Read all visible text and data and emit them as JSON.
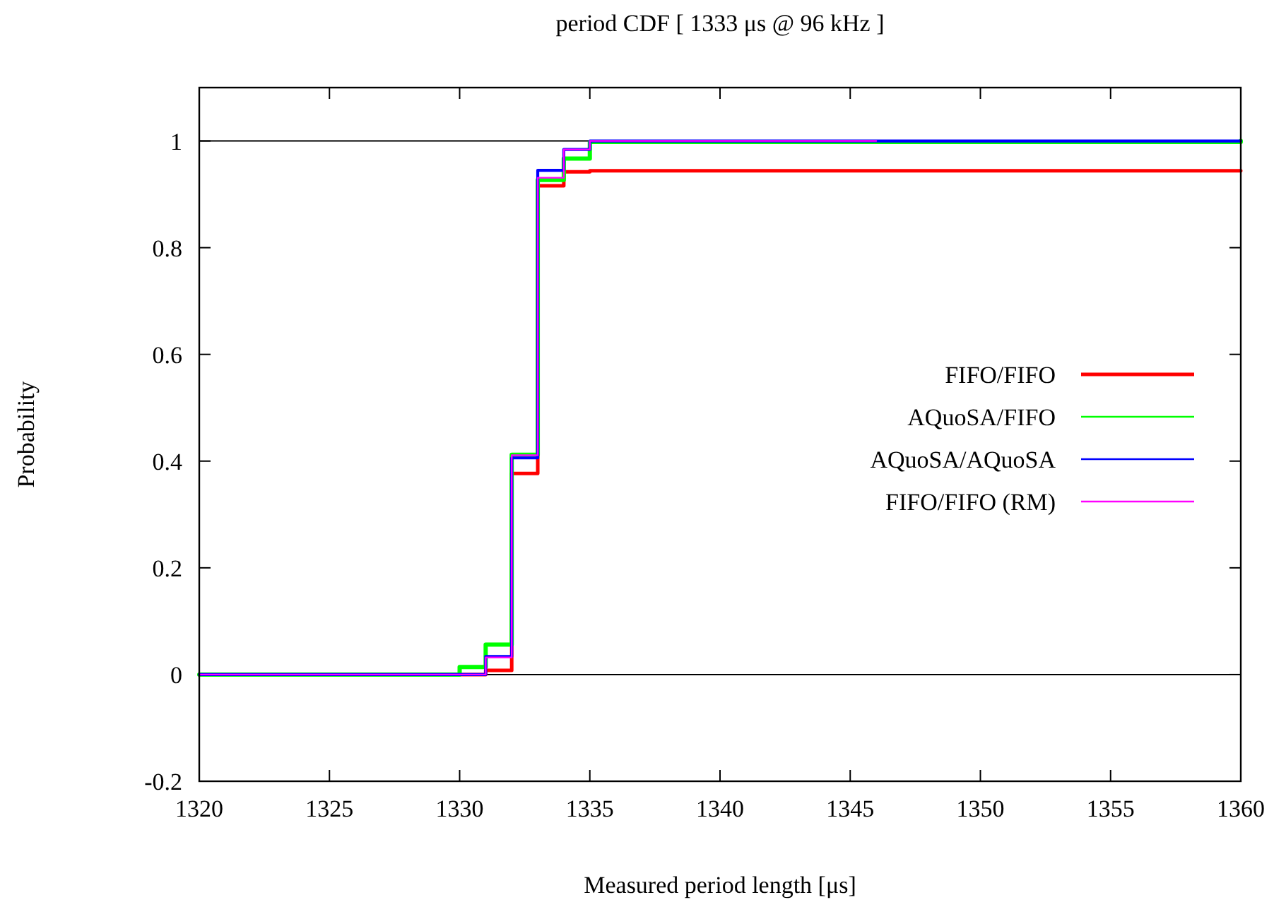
{
  "chart_data": {
    "type": "step",
    "title": "period CDF [ 1333 μs @ 96 kHz ]",
    "xlabel": "Measured period length [μs]",
    "ylabel": "Probability",
    "xlim": [
      1320,
      1360
    ],
    "xticks": [
      1320,
      1325,
      1330,
      1335,
      1340,
      1345,
      1350,
      1355,
      1360
    ],
    "ylim": [
      -0.2,
      1.1
    ],
    "yticks": [
      -0.2,
      0,
      0.2,
      0.4,
      0.6,
      0.8,
      1
    ],
    "grid": false,
    "legend": "right",
    "marker": "none",
    "line_style": "solid",
    "ref_lines": [
      {
        "axis": "y",
        "value": 0,
        "color": "#000000"
      },
      {
        "axis": "y",
        "value": 1,
        "color": "#000000"
      }
    ],
    "series": [
      {
        "name": "FIFO/FIFO",
        "color": "#ff0000",
        "x": [
          1320,
          1330,
          1331,
          1332,
          1333,
          1334,
          1335,
          1360
        ],
        "values": [
          0,
          0,
          0.008,
          0.377,
          0.916,
          0.942,
          0.944,
          0.944
        ]
      },
      {
        "name": "AQuoSA/FIFO",
        "color": "#00ff00",
        "x": [
          1320,
          1330,
          1331,
          1332,
          1333,
          1334,
          1335,
          1360
        ],
        "values": [
          0,
          0.014,
          0.056,
          0.412,
          0.927,
          0.967,
          0.998,
          1.0
        ]
      },
      {
        "name": "AQuoSA/AQuoSA",
        "color": "#0000ff",
        "x": [
          1320,
          1330,
          1331,
          1332,
          1333,
          1334,
          1335,
          1360
        ],
        "values": [
          0,
          0,
          0.034,
          0.406,
          0.945,
          0.984,
          1.0,
          1.0
        ]
      },
      {
        "name": "FIFO/FIFO (RM)",
        "color": "#ff00ff",
        "x": [
          1320,
          1330,
          1331,
          1332,
          1333,
          1334,
          1335,
          1346
        ],
        "values": [
          0,
          0,
          0.032,
          0.411,
          0.931,
          0.984,
          1.0,
          1.0
        ]
      }
    ]
  }
}
